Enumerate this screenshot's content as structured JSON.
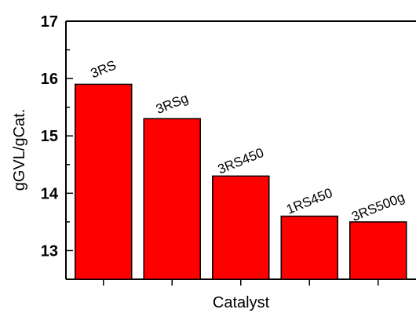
{
  "chart_data": {
    "type": "bar",
    "categories": [
      "3RS",
      "3RSg",
      "3RS450",
      "1RS450",
      "3RS500g"
    ],
    "values": [
      15.9,
      15.3,
      14.3,
      13.6,
      13.5
    ],
    "xlabel": "Catalyst",
    "ylabel": "gGVL/gCat.",
    "ylim": [
      12.5,
      17
    ],
    "yticks": [
      13,
      14,
      15,
      16,
      17
    ],
    "grid": false,
    "legend": "none",
    "bar_color": "#ff0000",
    "bar_edge_color": "#000000"
  }
}
